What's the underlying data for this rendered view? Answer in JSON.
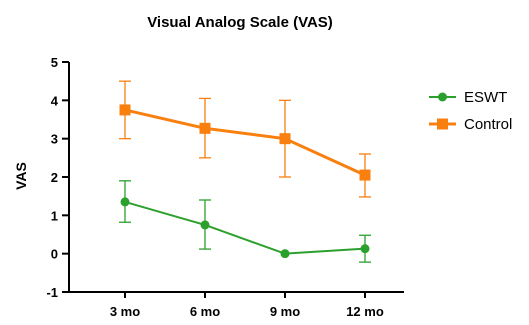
{
  "chart_data": {
    "type": "line",
    "title": "Visual Analog Scale (VAS)",
    "xlabel": "",
    "ylabel": "VAS",
    "categories": [
      "3 mo",
      "6 mo",
      "9 mo",
      "12 mo"
    ],
    "ylim": [
      -1,
      5
    ],
    "yticks": [
      -1,
      0,
      1,
      2,
      3,
      4,
      5
    ],
    "grid": false,
    "legend_position": "right",
    "series": [
      {
        "name": "ESWT",
        "color": "#2ca02c",
        "marker": "circle",
        "values": [
          1.35,
          0.75,
          0.0,
          0.13
        ],
        "error_upper": [
          1.9,
          1.4,
          0.0,
          0.48
        ],
        "error_lower": [
          0.82,
          0.12,
          0.0,
          -0.22
        ]
      },
      {
        "name": "Control",
        "color": "#f97f0f",
        "marker": "square",
        "values": [
          3.75,
          3.27,
          3.0,
          2.05
        ],
        "error_upper": [
          4.5,
          4.05,
          4.0,
          2.6
        ],
        "error_lower": [
          3.0,
          2.5,
          2.0,
          1.48
        ]
      }
    ]
  }
}
